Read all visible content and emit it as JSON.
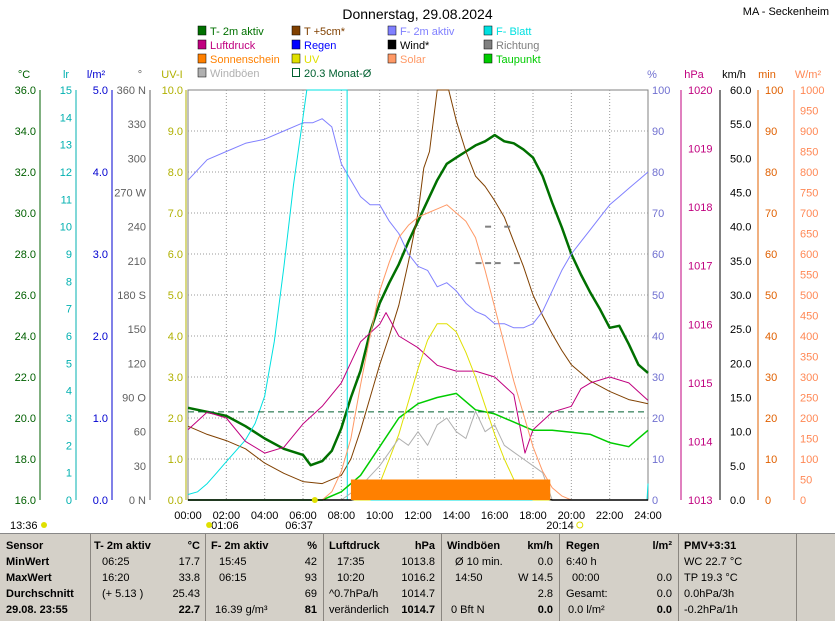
{
  "header": {
    "title": "Donnerstag, 29.08.2024",
    "station": "MA - Seckenheim"
  },
  "legend": [
    {
      "label": "T- 2m aktiv",
      "color": "#007000",
      "shape": "box"
    },
    {
      "label": "T +5cm*",
      "color": "#804000",
      "shape": "box"
    },
    {
      "label": "F- 2m aktiv",
      "color": "#8080ff",
      "shape": "box"
    },
    {
      "label": "F- Blatt",
      "color": "#00e0e0",
      "shape": "box"
    },
    {
      "label": "Luftdruck",
      "color": "#c0007f",
      "shape": "box"
    },
    {
      "label": "Regen",
      "color": "#0000ff",
      "shape": "box"
    },
    {
      "label": "Wind*",
      "color": "#000000",
      "shape": "box"
    },
    {
      "label": "Richtung",
      "color": "#808080",
      "shape": "box"
    },
    {
      "label": "Sonnenschein",
      "color": "#ff8000",
      "shape": "box"
    },
    {
      "label": "UV",
      "color": "#e0e000",
      "shape": "box"
    },
    {
      "label": "Solar",
      "color": "#ff9966",
      "shape": "box"
    },
    {
      "label": "Taupunkt",
      "color": "#00cc00",
      "shape": "box"
    },
    {
      "label": "Windböen",
      "color": "#b0b0b0",
      "shape": "box"
    },
    {
      "label": "20.3 Monat-Ø",
      "color": "#006030",
      "shape": "open"
    }
  ],
  "axes": {
    "left_units": [
      "°C",
      "lr",
      "l/m²",
      "°",
      "UV-I"
    ],
    "right_units": [
      "%",
      "hPa",
      "km/h",
      "min",
      "W/m²"
    ],
    "temp_ticks": [
      "36.0",
      "34.0",
      "32.0",
      "30.0",
      "28.0",
      "26.0",
      "24.0",
      "22.0",
      "20.0",
      "18.0",
      "16.0"
    ],
    "leaf_ticks": [
      "15",
      "14",
      "13",
      "12",
      "11",
      "10",
      "9",
      "8",
      "7",
      "6",
      "5",
      "4",
      "3",
      "2",
      "1",
      "0"
    ],
    "rain_ticks": [
      "5.0",
      "4.0",
      "3.0",
      "2.0",
      "1.0",
      "0.0"
    ],
    "dir_ticks": [
      "360 N",
      "330",
      "300",
      "270 W",
      "240",
      "210",
      "180 S",
      "150",
      "120",
      "90  O",
      "60",
      "30",
      "0   N"
    ],
    "uv_ticks": [
      "10.0",
      "9.0",
      "8.0",
      "7.0",
      "6.0",
      "5.0",
      "4.0",
      "3.0",
      "2.0",
      "1.0",
      "0.0"
    ],
    "hum_ticks": [
      "100",
      "90",
      "80",
      "70",
      "60",
      "50",
      "40",
      "30",
      "20",
      "10",
      "0"
    ],
    "press_ticks": [
      "1020",
      "1019",
      "1018",
      "1017",
      "1016",
      "1015",
      "1014",
      "1013"
    ],
    "wind_ticks": [
      "60.0",
      "55.0",
      "50.0",
      "45.0",
      "40.0",
      "35.0",
      "30.0",
      "25.0",
      "20.0",
      "15.0",
      "10.0",
      "5.0",
      "0.0"
    ],
    "min_ticks": [
      "100",
      "90",
      "80",
      "70",
      "60",
      "50",
      "40",
      "30",
      "20",
      "10",
      "0"
    ],
    "solar_ticks": [
      "1000",
      "950",
      "900",
      "850",
      "800",
      "750",
      "700",
      "650",
      "600",
      "550",
      "500",
      "450",
      "400",
      "350",
      "300",
      "250",
      "200",
      "150",
      "100",
      "50",
      "0"
    ],
    "time_ticks": [
      "00:00",
      "02:00",
      "04:00",
      "06:00",
      "08:00",
      "10:00",
      "12:00",
      "14:00",
      "16:00",
      "18:00",
      "20:00",
      "22:00",
      "24:00"
    ]
  },
  "sun": {
    "moonrise": "13:36",
    "moonset": "01:06",
    "sunrise": "06:37",
    "sunset": "20:14"
  },
  "chart_data": {
    "type": "line",
    "x_unit": "hours",
    "xlim": [
      0,
      24
    ],
    "series": [
      {
        "name": "T- 2m aktiv",
        "axis": "°C",
        "ylim": [
          16,
          36
        ],
        "x": [
          0,
          1,
          2,
          3,
          4,
          5,
          6,
          6.4,
          7,
          7.5,
          8,
          8.5,
          9,
          9.5,
          10,
          10.5,
          11,
          11.5,
          12,
          12.5,
          13,
          13.5,
          14,
          14.5,
          15,
          15.5,
          16,
          16.5,
          17,
          17.5,
          18,
          18.5,
          19,
          19.5,
          20,
          20.5,
          21,
          21.5,
          22,
          22.5,
          23,
          23.5,
          24
        ],
        "y": [
          20.5,
          20.3,
          20.1,
          19.6,
          19.0,
          18.5,
          18.2,
          17.7,
          17.9,
          18.4,
          19.5,
          21.0,
          22.3,
          24.2,
          25.6,
          26.6,
          27.5,
          28.6,
          29.6,
          30.6,
          31.6,
          32.4,
          32.7,
          33.0,
          33.3,
          33.5,
          33.8,
          33.5,
          33.4,
          33.1,
          32.7,
          31.8,
          30.5,
          29.3,
          28.0,
          27.0,
          26.1,
          25.3,
          24.4,
          24.5,
          23.6,
          22.6,
          22.2
        ]
      },
      {
        "name": "T +5cm*",
        "axis": "°C",
        "ylim": [
          16,
          36
        ],
        "x": [
          0,
          1,
          2,
          3,
          4,
          5,
          6,
          7,
          8,
          8.5,
          9,
          9.5,
          10,
          10.5,
          11,
          11.5,
          12,
          12.3,
          12.6,
          13,
          13.3,
          13.6,
          14,
          14.5,
          15,
          15.5,
          16,
          16.5,
          17,
          17.5,
          18,
          18.5,
          19,
          19.5,
          20,
          21,
          22,
          23,
          24
        ],
        "y": [
          19.6,
          19.2,
          18.9,
          18.5,
          17.8,
          17.3,
          16.9,
          16.8,
          17.2,
          18.0,
          19.4,
          21.0,
          22.6,
          24.0,
          25.5,
          27.6,
          30.0,
          32.2,
          33.0,
          36.0,
          36.0,
          36.0,
          34.5,
          33.0,
          31.8,
          31.3,
          30.6,
          29.8,
          28.6,
          27.4,
          26.0,
          25.0,
          24.1,
          23.3,
          22.6,
          21.8,
          21.3,
          20.9,
          20.7
        ]
      },
      {
        "name": "F- 2m aktiv",
        "axis": "%",
        "ylim": [
          0,
          100
        ],
        "x": [
          0,
          1,
          2,
          3,
          4,
          5,
          6,
          6.5,
          7,
          7.5,
          8,
          8.5,
          9,
          9.5,
          10,
          10.5,
          11,
          11.5,
          12,
          12.5,
          13,
          13.5,
          14,
          14.5,
          15,
          15.5,
          16,
          16.5,
          17,
          17.5,
          18,
          18.5,
          19,
          19.5,
          20,
          20.5,
          21,
          21.5,
          22,
          22.5,
          23,
          23.5,
          24
        ],
        "y": [
          78,
          83,
          85,
          87,
          88,
          90,
          92,
          92,
          93,
          91,
          82,
          78,
          74,
          72,
          72,
          68,
          65,
          60,
          57,
          56,
          52,
          53,
          51,
          48,
          46,
          45,
          43,
          43,
          42,
          42,
          43,
          46,
          51,
          56,
          60,
          63,
          66,
          69,
          72,
          74,
          76,
          78,
          80
        ]
      },
      {
        "name": "F- Blatt",
        "axis": "lr",
        "ylim": [
          0,
          15
        ],
        "x": [
          0,
          0.5,
          1,
          1.5,
          2,
          2.5,
          3,
          3.5,
          4,
          4.5,
          5,
          5.5,
          6,
          6.2,
          6.5,
          7,
          8,
          8.3,
          8.31,
          12,
          13,
          14,
          15,
          16,
          17,
          18,
          19,
          20,
          21,
          22,
          23,
          23.95,
          24
        ],
        "y": [
          0.2,
          0.3,
          0.6,
          1.0,
          1.4,
          1.8,
          2.2,
          2.8,
          3.8,
          5.8,
          8.5,
          11.5,
          14,
          15,
          15,
          15,
          15,
          15,
          0,
          0,
          0,
          0,
          0,
          0,
          0,
          0,
          0,
          0,
          0,
          0,
          0,
          0,
          0.6
        ]
      },
      {
        "name": "Luftdruck",
        "axis": "hPa",
        "ylim": [
          1013,
          1020
        ],
        "x": [
          0,
          1,
          2,
          3,
          4,
          5,
          6,
          7,
          8,
          9,
          10,
          10.33,
          11,
          12,
          13,
          14,
          15,
          16,
          17,
          17.58,
          18,
          19,
          20,
          20.5,
          21,
          22,
          23,
          24
        ],
        "y": [
          1014.2,
          1014.5,
          1014.4,
          1014.0,
          1013.8,
          1013.9,
          1014.3,
          1014.6,
          1015.0,
          1015.7,
          1016.0,
          1016.2,
          1015.8,
          1015.6,
          1015.3,
          1015.2,
          1015.2,
          1015.1,
          1014.8,
          1013.8,
          1014.2,
          1014.5,
          1014.6,
          1014.9,
          1015.0,
          1015.1,
          1015.0,
          1014.7
        ]
      },
      {
        "name": "Taupunkt",
        "axis": "°C",
        "ylim": [
          16,
          36
        ],
        "x": [
          0,
          1,
          2,
          3,
          4,
          5,
          6,
          7,
          8,
          9,
          10,
          11,
          12,
          13,
          14,
          15,
          16,
          17,
          18,
          19,
          20,
          21,
          22,
          23,
          24
        ],
        "y": [
          16.0,
          16.0,
          16.0,
          16.0,
          16.0,
          16.0,
          16.0,
          16.0,
          16.4,
          17.2,
          18.6,
          20.0,
          20.7,
          21.0,
          21.2,
          20.4,
          20.2,
          19.8,
          19.4,
          19.4,
          19.3,
          19.2,
          18.8,
          18.6,
          19.4
        ]
      },
      {
        "name": "Solar",
        "axis": "W/m²",
        "ylim": [
          0,
          1000
        ],
        "x": [
          0,
          7,
          7.5,
          8,
          8.5,
          9,
          9.5,
          10,
          10.5,
          11,
          11.5,
          12,
          12.5,
          13,
          13.5,
          14,
          14.5,
          15,
          15.5,
          16,
          16.5,
          17,
          17.5,
          18,
          18.5,
          19,
          19.5,
          20,
          24
        ],
        "y": [
          0,
          0,
          20,
          70,
          150,
          280,
          400,
          510,
          580,
          640,
          670,
          690,
          700,
          710,
          720,
          700,
          680,
          640,
          560,
          470,
          380,
          290,
          210,
          130,
          70,
          30,
          10,
          0,
          0
        ]
      },
      {
        "name": "UV",
        "axis": "UV-I",
        "ylim": [
          0,
          10
        ],
        "x": [
          0,
          9.5,
          10,
          10.5,
          11,
          11.5,
          12,
          12.5,
          13,
          13.5,
          14,
          14.5,
          15,
          15.5,
          16,
          16.5,
          17,
          17.5,
          18,
          24
        ],
        "y": [
          0,
          0,
          0.4,
          1.0,
          1.6,
          2.4,
          3.2,
          3.9,
          4.3,
          4.3,
          4.1,
          3.6,
          3.0,
          2.3,
          1.6,
          1.0,
          0.5,
          0.2,
          0,
          0
        ]
      },
      {
        "name": "Windböen",
        "axis": "km/h",
        "ylim": [
          0,
          60
        ],
        "x": [
          0,
          8,
          9,
          10,
          10.5,
          11,
          11.5,
          12,
          12.5,
          13,
          13.5,
          14,
          14.5,
          15,
          15.5,
          16,
          16.5,
          17,
          17.5,
          18,
          18.5,
          19,
          24
        ],
        "y": [
          0,
          0,
          2,
          5,
          7,
          9,
          8,
          10,
          8,
          11,
          12,
          10,
          9,
          13,
          10,
          11,
          8,
          7,
          6,
          5,
          4,
          0,
          0
        ]
      },
      {
        "name": "Wind*",
        "axis": "km/h",
        "ylim": [
          0,
          60
        ],
        "x": [
          0,
          8.5,
          9,
          10,
          11,
          12,
          13,
          14,
          15,
          16,
          17,
          18,
          18.5,
          19,
          24
        ],
        "y": [
          0,
          0,
          0.3,
          0.5,
          0.6,
          0.8,
          0.8,
          1.0,
          1.2,
          1.4,
          1.1,
          0.6,
          0.3,
          0,
          0
        ]
      },
      {
        "name": "Sonnenschein",
        "axis": "min",
        "ylim": [
          0,
          100
        ],
        "x": [
          8.5,
          18.9
        ],
        "y": [
          5,
          5
        ]
      },
      {
        "name": "Richtung",
        "axis": "°",
        "ylim": [
          0,
          360
        ],
        "x": [
          15,
          15.5,
          16,
          17,
          15.5,
          16.5
        ],
        "y": [
          208,
          208,
          208,
          208,
          240,
          240
        ]
      },
      {
        "name": "20.3 Monat-Ø",
        "axis": "°C",
        "ylim": [
          16,
          36
        ],
        "x": [
          0,
          24
        ],
        "y": [
          20.3,
          20.3
        ]
      }
    ]
  },
  "stats": {
    "col1": {
      "r0": "Sensor",
      "r1": "MinWert",
      "r2": "MaxWert",
      "r3": "Durchschnitt",
      "r4": "29.08.  23:55"
    },
    "col2": {
      "head_a": "T- 2m aktiv",
      "head_b": "°C",
      "r1a": "06:25",
      "r1b": "17.7",
      "r2a": "16:20",
      "r2b": "33.8",
      "r3a": "(+ 5.13 )",
      "r3b": "25.43",
      "r4b": "22.7"
    },
    "col3": {
      "head_a": "F- 2m aktiv",
      "head_b": "%",
      "r1a": "15:45",
      "r1b": "42",
      "r2a": "06:15",
      "r2b": "93",
      "r3b": "69",
      "r4a": "16.39 g/m³",
      "r4b": "81"
    },
    "col4": {
      "head_a": "Luftdruck",
      "head_b": "hPa",
      "r1a": "17:35",
      "r1b": "1013.8",
      "r2a": "10:20",
      "r2b": "1016.2",
      "r3a": "^0.7hPa/h",
      "r3b": "1014.7",
      "r4a": "veränderlich",
      "r4b": "1014.7"
    },
    "col5": {
      "head_a": "Windböen",
      "head_b": "km/h",
      "r1a": "Ø 10 min.",
      "r1b": "0.0",
      "r2a": "14:50",
      "r2b": "W 14.5",
      "r3b": "2.8",
      "r4a": "0 Bft N",
      "r4b": "0.0"
    },
    "col6": {
      "head_a": "Regen",
      "head_b": "l/m²",
      "r1a": "6:40 h",
      "r2a": "00:00",
      "r2b": "0.0",
      "r3a": "Gesamt:",
      "r3b": "0.0",
      "r4a": "0.0 l/m²",
      "r4b": "0.0"
    },
    "col7": {
      "r0": "PMV+3:31",
      "r1": "WC 22.7 °C",
      "r2": "TP 19.3 °C",
      "r3": "0.0hPa/3h",
      "r4": "-0.2hPa/1h"
    }
  }
}
